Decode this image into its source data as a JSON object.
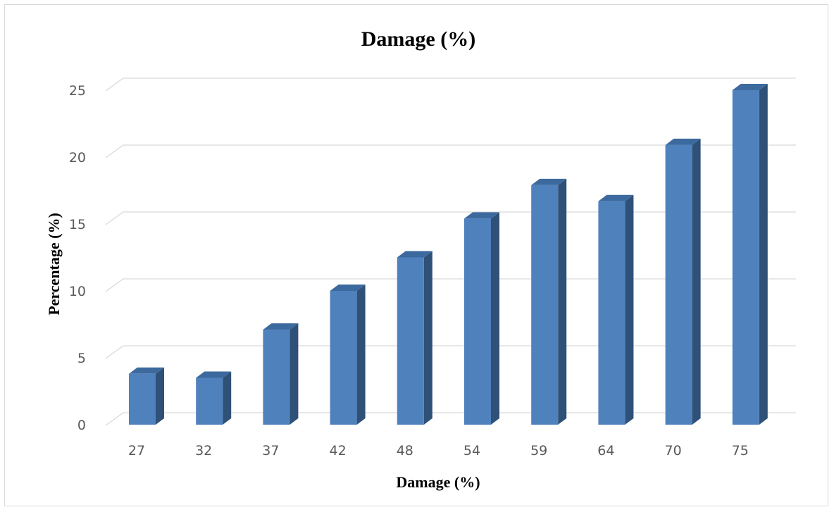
{
  "chart_data": {
    "type": "bar",
    "title": "Damage (%)",
    "xlabel": "Damage (%)",
    "ylabel": "Percentage (%)",
    "categories": [
      "27",
      "32",
      "37",
      "42",
      "48",
      "54",
      "59",
      "64",
      "70",
      "75"
    ],
    "values": [
      3.8,
      3.5,
      7.1,
      10.0,
      12.5,
      15.4,
      17.9,
      16.7,
      20.9,
      25.0
    ],
    "ylim": [
      0,
      25
    ],
    "yticks": [
      "0",
      "5",
      "10",
      "15",
      "20",
      "25"
    ],
    "grid": true,
    "legend": "none",
    "style": "3d-column"
  },
  "colors": {
    "bar_front": "#4f81bd",
    "bar_top": "#3d6a9e",
    "bar_side": "#2f5077",
    "grid": "#d9d9d9",
    "tick_text": "#595959"
  }
}
